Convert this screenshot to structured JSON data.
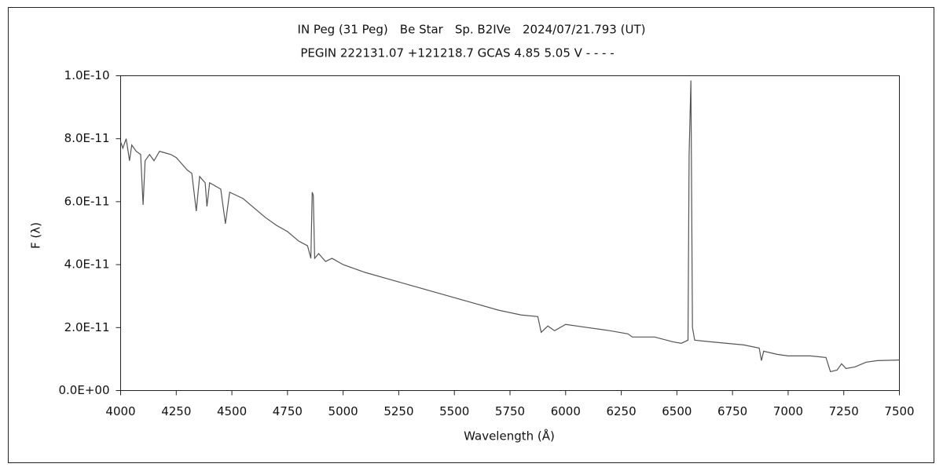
{
  "chart_data": {
    "type": "line",
    "title": "IN Peg (31 Peg)　Be Star　Sp. B2IVe　2024/07/21.793 (UT)",
    "subtitle": "PEGIN 222131.07 +121218.7 GCAS 4.85 5.05 V - - - -",
    "x_label": "Wavelength (Å)",
    "y_label": "F (λ)",
    "xlim": [
      4000,
      7500
    ],
    "xticks": [
      4000,
      4250,
      4500,
      4750,
      5000,
      5250,
      5500,
      5750,
      6000,
      6250,
      6500,
      6750,
      7000,
      7250,
      7500
    ],
    "ylim": [
      0,
      1e-10
    ],
    "yticks": [
      {
        "value": 0,
        "label": "0.0E+00"
      },
      {
        "value": 2e-11,
        "label": "2.0E-11"
      },
      {
        "value": 4e-11,
        "label": "4.0E-11"
      },
      {
        "value": 6e-11,
        "label": "6.0E-11"
      },
      {
        "value": 8e-11,
        "label": "8.0E-11"
      },
      {
        "value": 1e-10,
        "label": "1.0E-10"
      }
    ],
    "grid": false,
    "color": "#555555",
    "x": [
      4000,
      4010,
      4025,
      4040,
      4050,
      4070,
      4090,
      4101,
      4110,
      4130,
      4150,
      4175,
      4200,
      4225,
      4250,
      4275,
      4300,
      4320,
      4340,
      4355,
      4380,
      4388,
      4400,
      4450,
      4471,
      4490,
      4550,
      4600,
      4650,
      4700,
      4750,
      4800,
      4840,
      4855,
      4861,
      4866,
      4872,
      4890,
      4921,
      4950,
      5000,
      5100,
      5200,
      5300,
      5400,
      5500,
      5600,
      5700,
      5800,
      5875,
      5890,
      5920,
      5950,
      6000,
      6100,
      6200,
      6280,
      6300,
      6400,
      6480,
      6520,
      6550,
      6555,
      6563,
      6570,
      6580,
      6650,
      6800,
      6870,
      6880,
      6890,
      6950,
      7000,
      7100,
      7170,
      7190,
      7220,
      7240,
      7260,
      7300,
      7350,
      7400,
      7500
    ],
    "values": [
      7.9e-11,
      7.7e-11,
      8e-11,
      7.3e-11,
      7.8e-11,
      7.6e-11,
      7.5e-11,
      5.9e-11,
      7.3e-11,
      7.5e-11,
      7.3e-11,
      7.6e-11,
      7.55e-11,
      7.5e-11,
      7.4e-11,
      7.2e-11,
      7e-11,
      6.9e-11,
      5.7e-11,
      6.8e-11,
      6.6e-11,
      5.85e-11,
      6.6e-11,
      6.4e-11,
      5.3e-11,
      6.3e-11,
      6.1e-11,
      5.8e-11,
      5.5e-11,
      5.25e-11,
      5.05e-11,
      4.75e-11,
      4.6e-11,
      4.2e-11,
      6.3e-11,
      6.2e-11,
      4.2e-11,
      4.35e-11,
      4.1e-11,
      4.2e-11,
      4e-11,
      3.75e-11,
      3.55e-11,
      3.35e-11,
      3.15e-11,
      2.95e-11,
      2.75e-11,
      2.55e-11,
      2.4e-11,
      2.35e-11,
      1.85e-11,
      2.05e-11,
      1.9e-11,
      2.1e-11,
      2e-11,
      1.9e-11,
      1.8e-11,
      1.7e-11,
      1.7e-11,
      1.55e-11,
      1.5e-11,
      1.6e-11,
      7.5e-11,
      9.85e-11,
      2e-11,
      1.6e-11,
      1.55e-11,
      1.45e-11,
      1.35e-11,
      9.5e-12,
      1.25e-11,
      1.15e-11,
      1.1e-11,
      1.1e-11,
      1.05e-11,
      6e-12,
      6.5e-12,
      8.5e-12,
      7e-12,
      7.5e-12,
      9e-12,
      9.5e-12,
      9.7e-12
    ]
  }
}
